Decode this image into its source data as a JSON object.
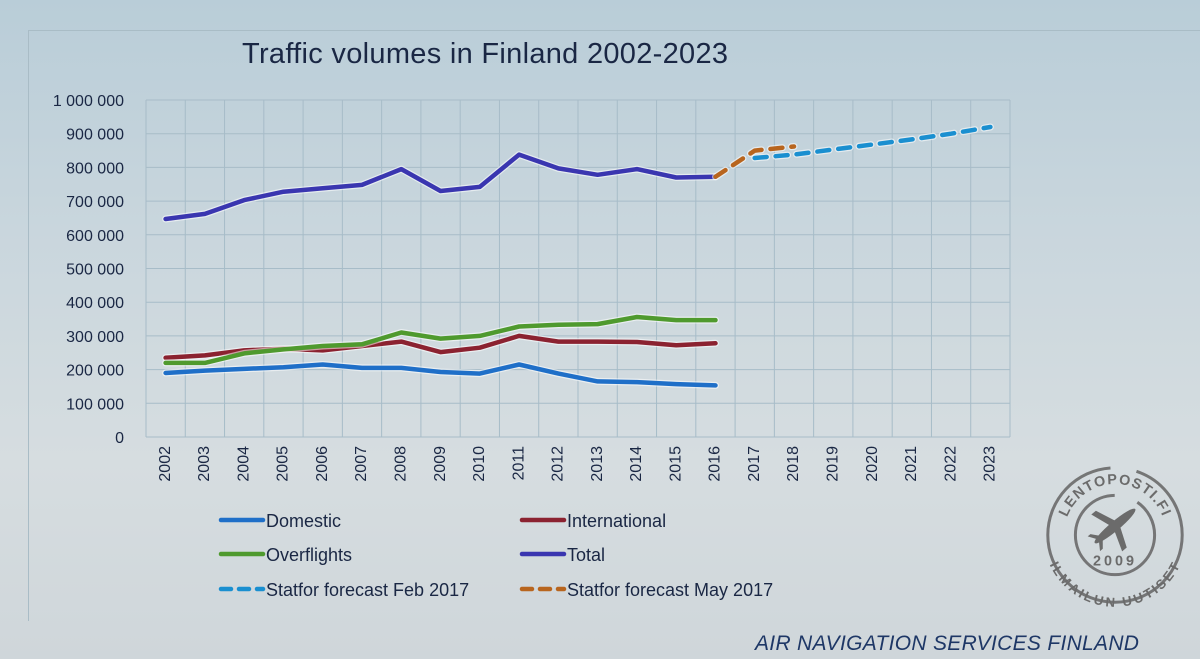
{
  "chart_data": {
    "type": "line",
    "title": "Traffic volumes in Finland 2002-2023",
    "xlabel": "",
    "ylabel": "",
    "ylim": [
      0,
      1000000
    ],
    "yticks": [
      0,
      100000,
      200000,
      300000,
      400000,
      500000,
      600000,
      700000,
      800000,
      900000,
      1000000
    ],
    "ytick_labels": [
      "0",
      "100 000",
      "200 000",
      "300 000",
      "400 000",
      "500 000",
      "600 000",
      "700 000",
      "800 000",
      "900 000",
      "1 000 000"
    ],
    "categories": [
      "2002",
      "2003",
      "2004",
      "2005",
      "2006",
      "2007",
      "2008",
      "2009",
      "2010",
      "2011",
      "2012",
      "2013",
      "2014",
      "2015",
      "2016",
      "2017",
      "2018",
      "2019",
      "2020",
      "2021",
      "2022",
      "2023"
    ],
    "grid": true,
    "legend_position": "bottom",
    "series": [
      {
        "name": "Domestic",
        "color": "#1f6fc8",
        "dashed": false,
        "values": [
          190000,
          197000,
          202000,
          207000,
          215000,
          205000,
          205000,
          193000,
          188000,
          215000,
          188000,
          165000,
          163000,
          157000,
          153000,
          null,
          null,
          null,
          null,
          null,
          null,
          null
        ]
      },
      {
        "name": "International",
        "color": "#8b2230",
        "dashed": false,
        "values": [
          235000,
          242000,
          257000,
          262000,
          257000,
          270000,
          283000,
          252000,
          265000,
          300000,
          283000,
          283000,
          282000,
          272000,
          278000,
          null,
          null,
          null,
          null,
          null,
          null,
          null
        ]
      },
      {
        "name": "Overflights",
        "color": "#4f9a2e",
        "dashed": false,
        "values": [
          220000,
          220000,
          248000,
          260000,
          270000,
          275000,
          310000,
          292000,
          300000,
          328000,
          333000,
          335000,
          356000,
          347000,
          347000,
          null,
          null,
          null,
          null,
          null,
          null,
          null
        ]
      },
      {
        "name": "Total",
        "color": "#3a36b0",
        "dashed": false,
        "values": [
          647000,
          662000,
          703000,
          728000,
          738000,
          748000,
          795000,
          730000,
          742000,
          838000,
          797000,
          778000,
          795000,
          770000,
          772000,
          null,
          null,
          null,
          null,
          null,
          null,
          null
        ]
      },
      {
        "name": "Statfor forecast Feb 2017",
        "color": "#1a8fd0",
        "dashed": true,
        "values": [
          null,
          null,
          null,
          null,
          null,
          null,
          null,
          null,
          null,
          null,
          null,
          null,
          null,
          null,
          null,
          828000,
          838000,
          853000,
          868000,
          883000,
          900000,
          920000
        ]
      },
      {
        "name": "Statfor forecast May 2017",
        "color": "#b8651e",
        "dashed": true,
        "values": [
          null,
          null,
          null,
          null,
          null,
          null,
          null,
          null,
          null,
          null,
          null,
          null,
          null,
          null,
          772000,
          850000,
          862000,
          null,
          null,
          null,
          null,
          null
        ]
      }
    ]
  },
  "footer": "AIR NAVIGATION SERVICES FINLAND",
  "watermark": {
    "top_text": "LENTOPOSTI.FI",
    "bottom_text": "ILMAILUN UUTISET",
    "year": "2009"
  }
}
